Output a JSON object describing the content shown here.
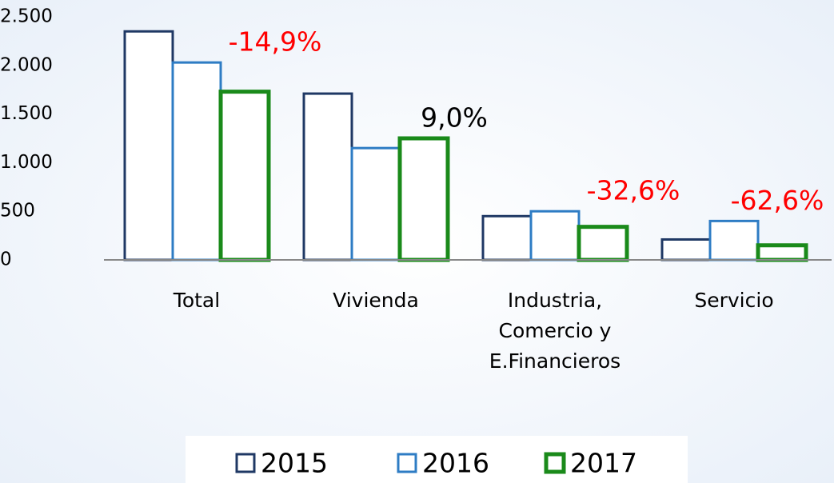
{
  "chart_data": {
    "type": "bar",
    "categories": [
      [
        "Total"
      ],
      [
        "Vivienda"
      ],
      [
        "Industria,",
        "Comercio y",
        "E.Financieros"
      ],
      [
        "Servicio"
      ]
    ],
    "series": [
      {
        "name": "2015",
        "color": "#1f3864",
        "values": [
          2350,
          1710,
          450,
          210
        ]
      },
      {
        "name": "2016",
        "color": "#2e7cc4",
        "values": [
          2030,
          1150,
          500,
          400
        ]
      },
      {
        "name": "2017",
        "color": "#1a8a1a",
        "values": [
          1730,
          1250,
          340,
          150
        ]
      }
    ],
    "annotations": [
      {
        "text": "-14,9%",
        "color": "#ff0000"
      },
      {
        "text": "9,0%",
        "color": "#000000"
      },
      {
        "text": "-32,6%",
        "color": "#ff0000"
      },
      {
        "text": "-62,6%",
        "color": "#ff0000"
      }
    ],
    "ylim": [
      0,
      2500
    ],
    "yticks": [
      0,
      500,
      {
        "value": 1000,
        "label": "1.000"
      },
      {
        "value": 1500,
        "label": "1.500"
      },
      {
        "value": 2000,
        "label": "2.000"
      },
      {
        "value": 2500,
        "label": "2.500"
      }
    ],
    "legend": "bottom"
  }
}
